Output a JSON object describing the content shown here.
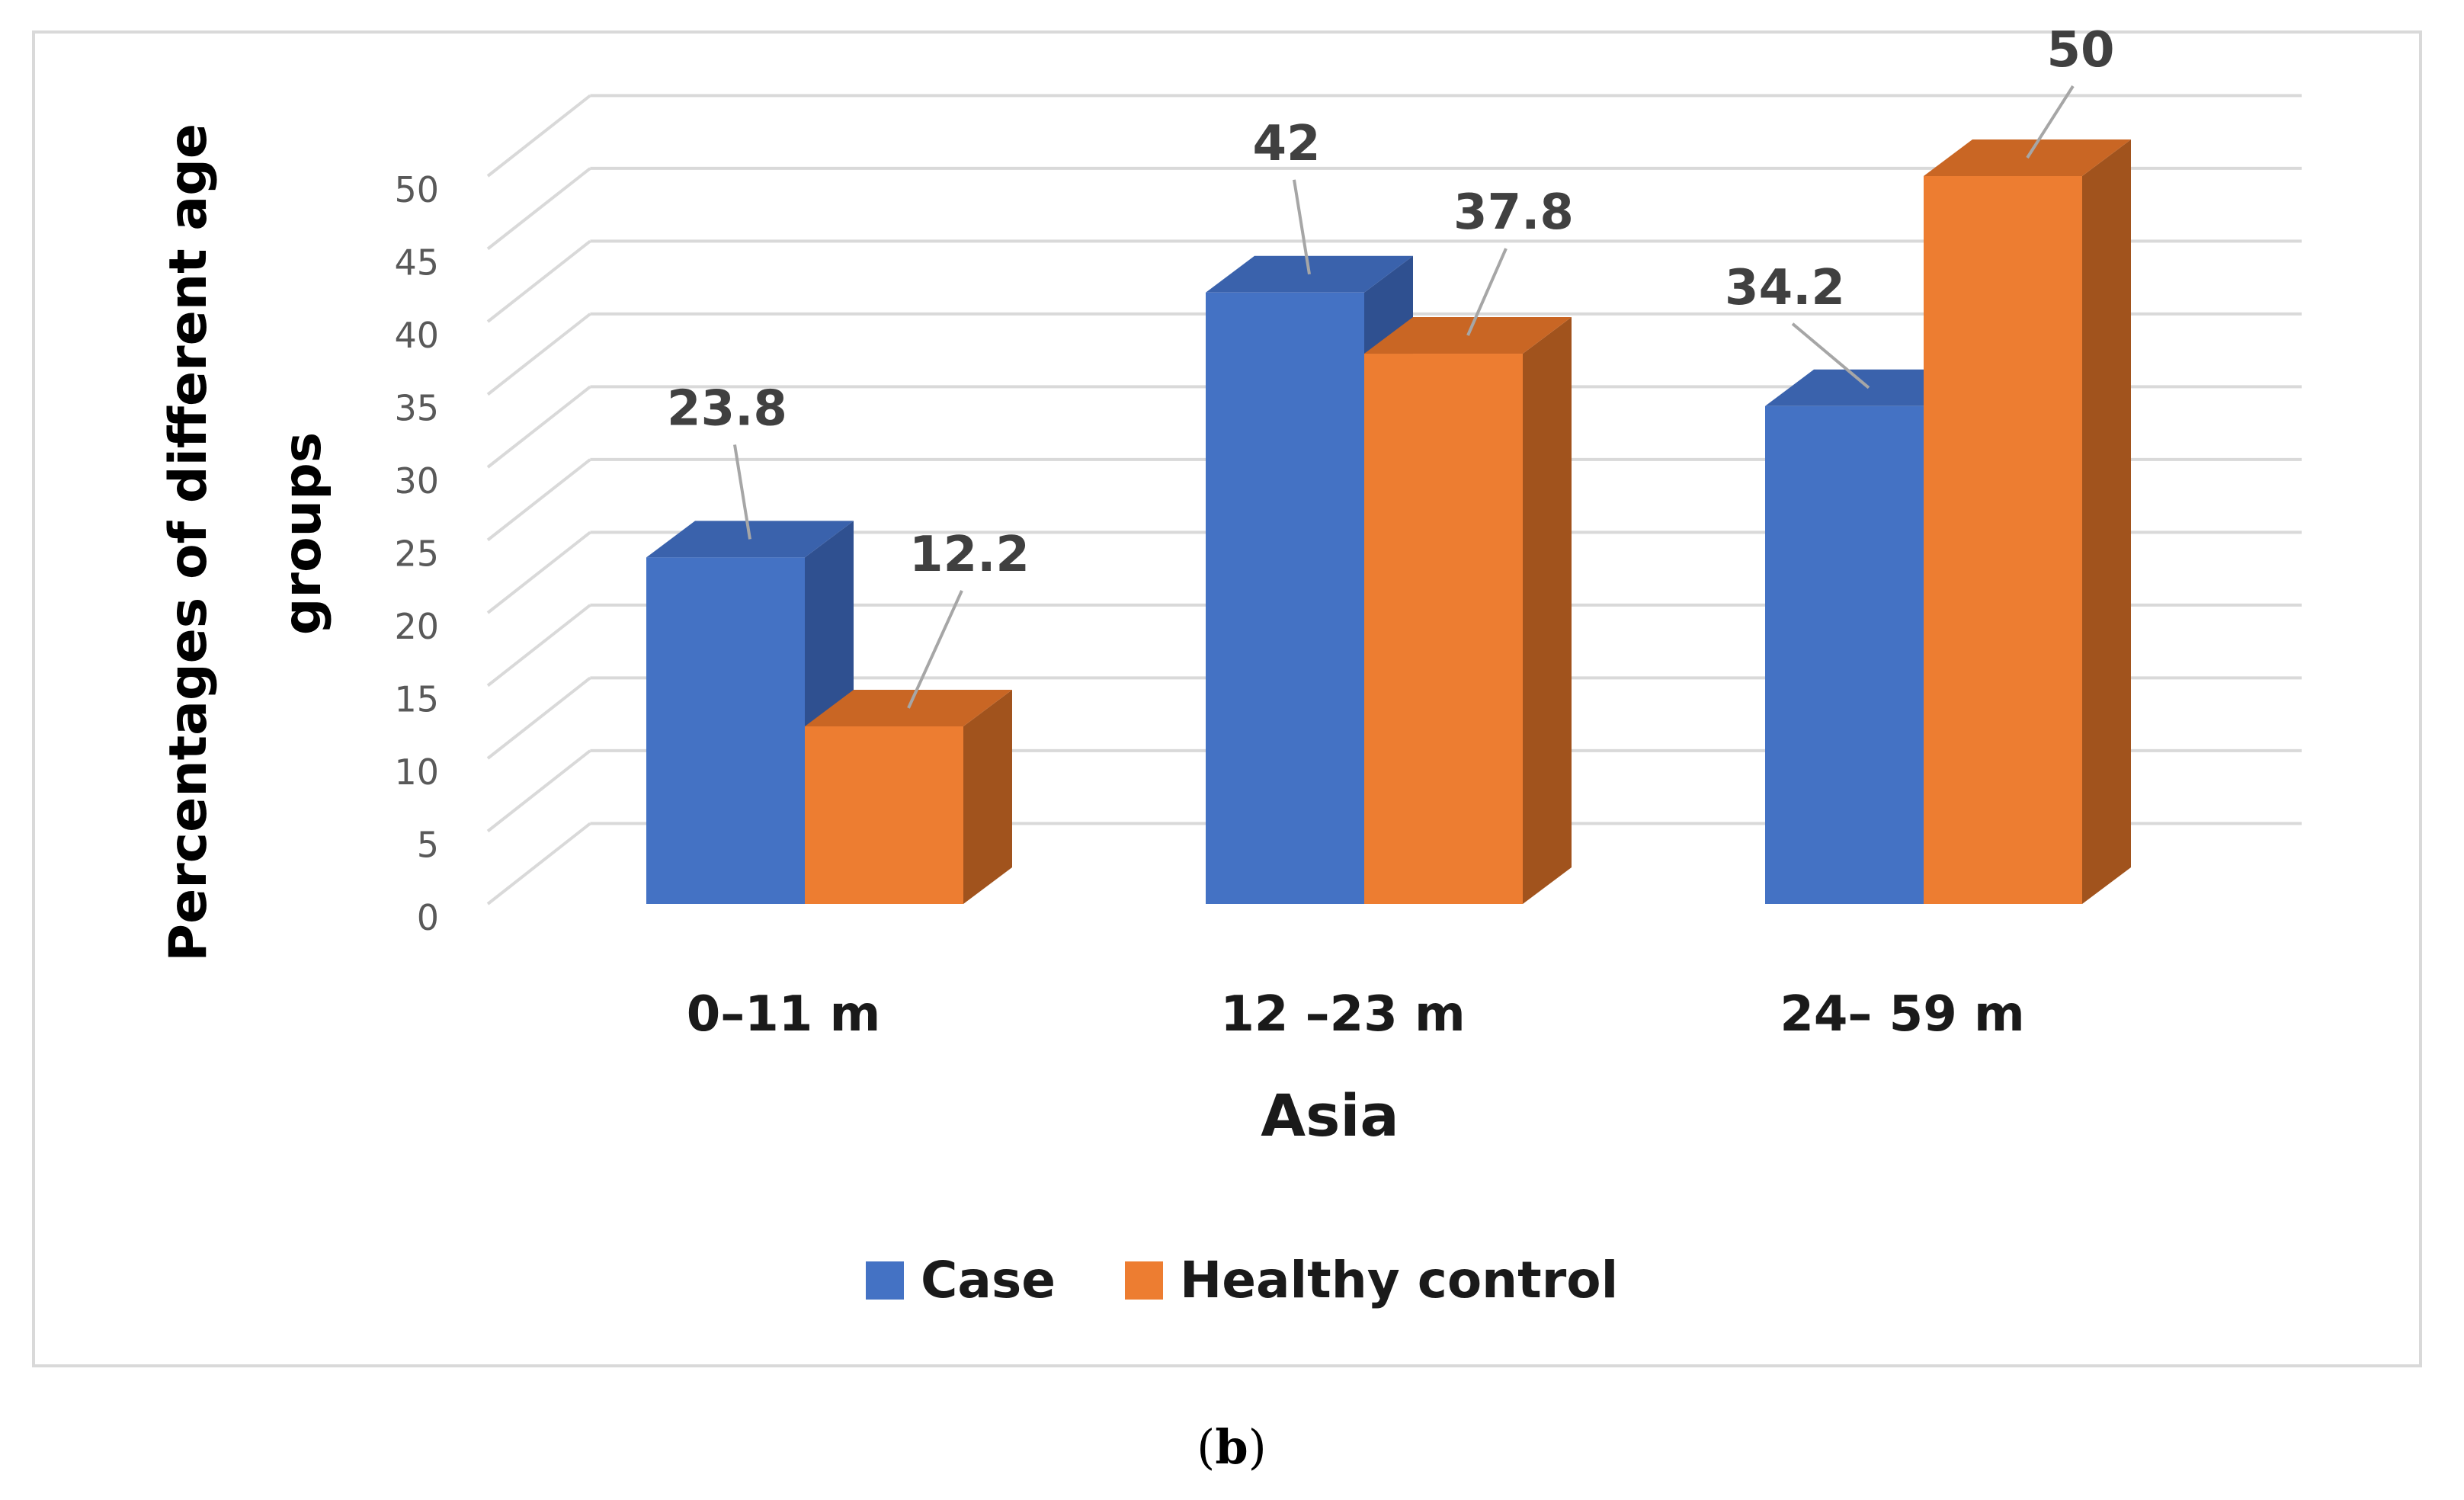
{
  "chart_data": {
    "type": "bar",
    "categories": [
      "0–11 m",
      "12 –23 m",
      "24– 59 m"
    ],
    "series": [
      {
        "name": "Case",
        "values": [
          23.8,
          42,
          34.2
        ],
        "color": "#4472C4"
      },
      {
        "name": "Healthy control",
        "values": [
          12.2,
          37.8,
          50
        ],
        "color": "#ED7D31"
      }
    ],
    "data_labels": [
      [
        "23.8",
        "42",
        "34.2"
      ],
      [
        "12.2",
        "37.8",
        "50"
      ]
    ],
    "xlabel": "Asia",
    "ylabel": "Percentages of different age groups",
    "ylabel_lines": [
      "Percentages of different age",
      "groups"
    ],
    "ylim": [
      0,
      50
    ],
    "yticks": [
      0,
      5,
      10,
      15,
      20,
      25,
      30,
      35,
      40,
      45,
      50
    ],
    "grid": true,
    "style": "3d-clustered-column",
    "legend_position": "bottom",
    "colors": {
      "case_front": "#4472C4",
      "case_side": "#2F5090",
      "case_top": "#3A62AC",
      "control_front": "#ED7D31",
      "control_side": "#A1531D",
      "control_top": "#C96624",
      "grid": "#d9d9d9"
    }
  },
  "caption": {
    "open": "(",
    "letter": "b",
    "close": ")"
  }
}
